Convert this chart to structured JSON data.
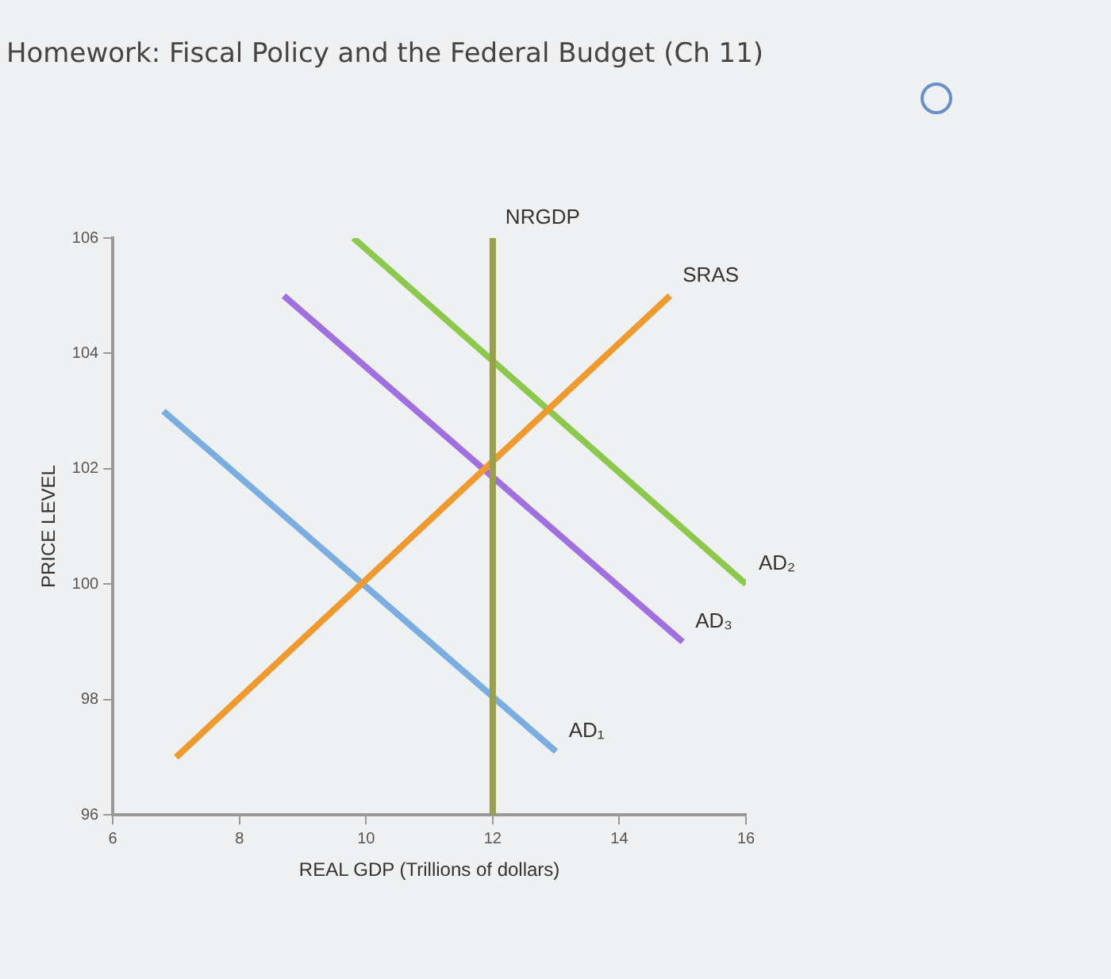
{
  "chart_data": {
    "type": "line",
    "title": "Homework: Fiscal Policy and the Federal Budget (Ch 11)",
    "xlabel": "REAL GDP (Trillions of dollars)",
    "ylabel": "PRICE LEVEL",
    "xlim": [
      6,
      16
    ],
    "xticks": [
      6,
      8,
      10,
      12,
      14,
      16
    ],
    "ylim": [
      96,
      106
    ],
    "yticks": [
      96,
      98,
      100,
      102,
      104,
      106
    ],
    "grid": false,
    "legend": false,
    "marker": "none",
    "line_style": "solid",
    "series": [
      {
        "name": "NRGDP",
        "color": "#9aa04a",
        "x": [
          12,
          12
        ],
        "values": [
          96,
          106
        ]
      },
      {
        "name": "SRAS",
        "color": "#ef9a2f",
        "x": [
          7,
          14.8
        ],
        "values": [
          97,
          105
        ]
      },
      {
        "name": "AD₁",
        "color": "#7aaee0",
        "x": [
          6.8,
          13
        ],
        "values": [
          103,
          97.1
        ]
      },
      {
        "name": "AD₂",
        "color": "#8cc84b",
        "x": [
          9.8,
          16
        ],
        "values": [
          106,
          100
        ]
      },
      {
        "name": "AD₃",
        "color": "#a070e0",
        "x": [
          8.7,
          15
        ],
        "values": [
          105,
          99
        ]
      }
    ]
  }
}
